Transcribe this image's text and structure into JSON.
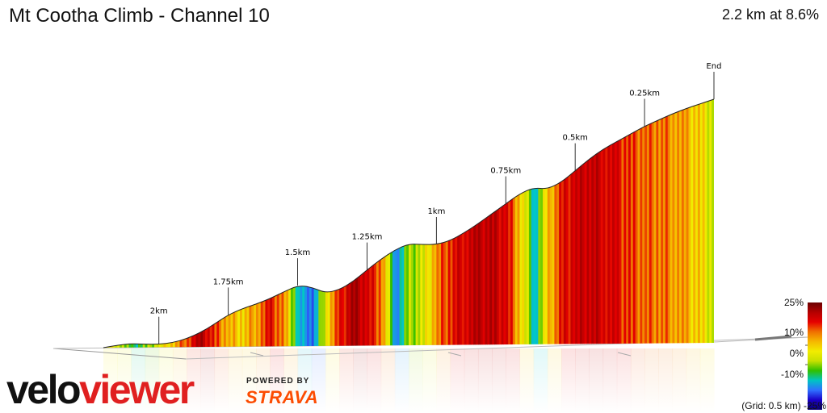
{
  "title": "Mt Cootha Climb - Channel 10",
  "summary": "2.2 km at 8.6%",
  "chart_data": {
    "type": "area",
    "title": "Mt Cootha Climb - Channel 10",
    "subtitle": "2.2 km at 8.6%",
    "distance_unit": "km",
    "distance_markers": [
      "2km",
      "1.75km",
      "1.5km",
      "1.25km",
      "1km",
      "0.75km",
      "0.5km",
      "0.25km",
      "End"
    ],
    "distance_marker_values": [
      2.0,
      1.75,
      1.5,
      1.25,
      1.0,
      0.75,
      0.5,
      0.25,
      0.0
    ],
    "x_km_to_end": [
      2.2,
      2.15,
      2.1,
      2.05,
      2.0,
      1.95,
      1.9,
      1.85,
      1.8,
      1.75,
      1.7,
      1.65,
      1.6,
      1.55,
      1.5,
      1.45,
      1.4,
      1.35,
      1.3,
      1.25,
      1.2,
      1.15,
      1.1,
      1.05,
      1.0,
      0.95,
      0.9,
      0.85,
      0.8,
      0.75,
      0.7,
      0.65,
      0.6,
      0.55,
      0.5,
      0.45,
      0.4,
      0.35,
      0.3,
      0.25,
      0.2,
      0.15,
      0.1,
      0.05,
      0.0
    ],
    "gradient_percent": [
      6,
      5,
      -2,
      1,
      5,
      9,
      14,
      19,
      13,
      9,
      8,
      11,
      15,
      10,
      -4,
      -8,
      7,
      14,
      20,
      16,
      12,
      -6,
      2,
      4,
      11,
      15,
      17,
      18,
      18,
      16,
      8,
      -3,
      8,
      15,
      17,
      18,
      17,
      15,
      13,
      12,
      12,
      11,
      9,
      7,
      3
    ],
    "elevation_relative": [
      0,
      3,
      5,
      4,
      4,
      6,
      11,
      19,
      30,
      42,
      50,
      56,
      63,
      72,
      80,
      78,
      70,
      74,
      85,
      100,
      114,
      126,
      134,
      133,
      133,
      138,
      148,
      160,
      173,
      186,
      199,
      207,
      205,
      214,
      229,
      244,
      257,
      267,
      277,
      287,
      295,
      303,
      310,
      316,
      322
    ],
    "legend": {
      "type": "color_scale",
      "labels": [
        "25%",
        "10%",
        "0%",
        "-10%",
        "-25%"
      ],
      "values": [
        25,
        10,
        0,
        -10,
        -25
      ],
      "colors": [
        "#6b0000",
        "#b40000",
        "#e60000",
        "#f07000",
        "#f5b800",
        "#f2ec00",
        "#c8e000",
        "#2fbf00",
        "#00c4c4",
        "#2f6fff",
        "#1a00c8",
        "#0a0073"
      ],
      "grid_note": "(Grid: 0.5 km)"
    }
  },
  "branding": {
    "logo_part1": "velo",
    "logo_part2": "viewer",
    "powered_by": "POWERED BY",
    "strava": "STRAVA"
  }
}
